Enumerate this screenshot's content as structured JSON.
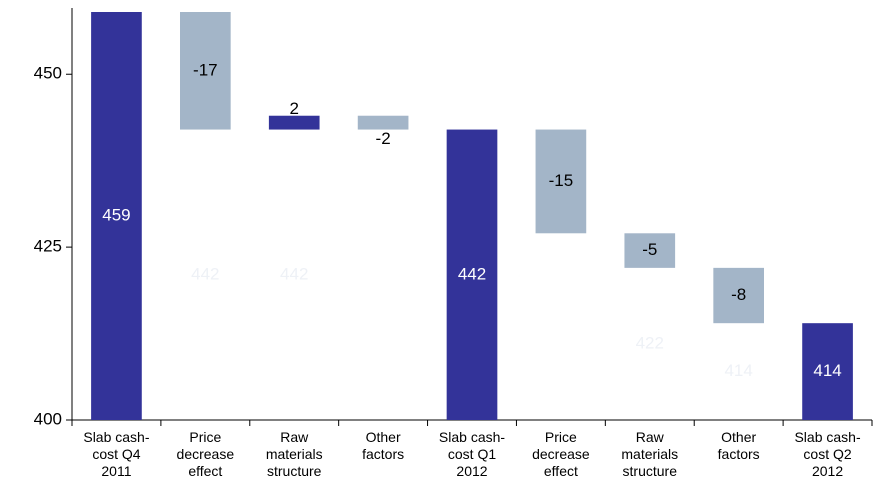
{
  "chart_data": {
    "type": "waterfall",
    "categories": [
      "Slab cash-\ncost Q4\n2011",
      "Price\ndecrease\neffect",
      "Raw\nmaterials\nstructure",
      "Other\nfactors",
      "Slab cash-\ncost Q1\n2012",
      "Price\ndecrease\neffect",
      "Raw\nmaterials\nstructure",
      "Other\nfactors",
      "Slab cash-\ncost Q2\n2012"
    ],
    "values": [
      459,
      -17,
      2,
      -2,
      442,
      -15,
      -5,
      -8,
      414
    ],
    "totals": [
      true,
      false,
      false,
      false,
      true,
      false,
      false,
      false,
      true
    ],
    "base_labels": [
      null,
      442,
      442,
      null,
      null,
      null,
      422,
      414,
      null
    ],
    "total_color": "#333399",
    "increase_color": "#333399",
    "decrease_color": "#a3b5c8",
    "base_label_color": "#eef1f6",
    "ylim": [
      400,
      459
    ],
    "yticks": [
      400,
      425,
      450
    ]
  }
}
